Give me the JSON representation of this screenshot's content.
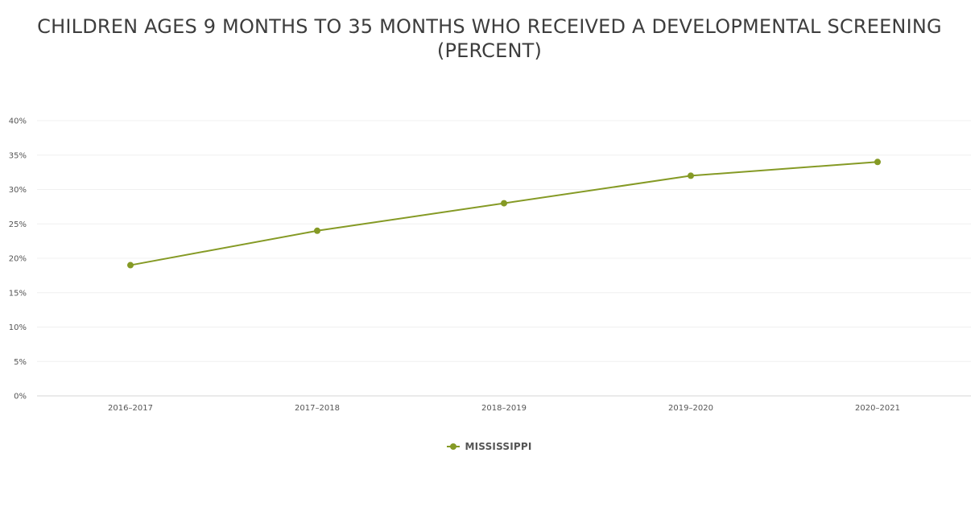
{
  "chart_data": {
    "type": "line",
    "title": "CHILDREN AGES 9 MONTHS TO 35 MONTHS WHO RECEIVED A DEVELOPMENTAL SCREENING (PERCENT)",
    "categories": [
      "2016–2017",
      "2017–2018",
      "2018–2019",
      "2019–2020",
      "2020–2021"
    ],
    "series": [
      {
        "name": "MISSISSIPPI",
        "values": [
          19,
          24,
          28,
          32,
          34
        ],
        "color": "#859a25"
      }
    ],
    "ylim": [
      0,
      40
    ],
    "yticks": [
      0,
      5,
      10,
      15,
      20,
      25,
      30,
      35,
      40
    ],
    "ytick_labels": [
      "0%",
      "5%",
      "10%",
      "15%",
      "20%",
      "25%",
      "30%",
      "35%",
      "40%"
    ],
    "xlabel": "",
    "ylabel": "",
    "grid": true,
    "legend": "bottom-center"
  }
}
